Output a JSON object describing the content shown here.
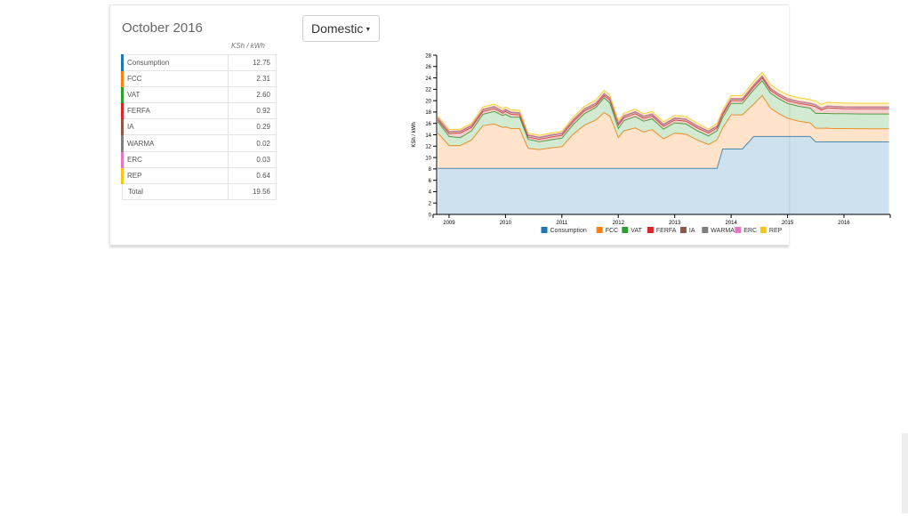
{
  "period_title": "October 2016",
  "unit_label": "KSh / kWh",
  "tariff_dropdown": {
    "selected": "Domestic"
  },
  "breakdown": {
    "rows": [
      {
        "name": "Consumption",
        "value": "12.75",
        "color": "#1f77b4"
      },
      {
        "name": "FCC",
        "value": "2.31",
        "color": "#ff7f0e"
      },
      {
        "name": "VAT",
        "value": "2.60",
        "color": "#2ca02c"
      },
      {
        "name": "FERFA",
        "value": "0.92",
        "color": "#d62728"
      },
      {
        "name": "IA",
        "value": "0.29",
        "color": "#8c564b"
      },
      {
        "name": "WARMA",
        "value": "0.02",
        "color": "#7f7f7f"
      },
      {
        "name": "ERC",
        "value": "0.03",
        "color": "#e377c2"
      },
      {
        "name": "REP",
        "value": "0.64",
        "color": "#f5c518"
      }
    ],
    "total_label": "Total",
    "total_value": "19.56"
  },
  "chart_data": {
    "type": "area",
    "stacked": true,
    "ylabel": "KSh / kWh",
    "ylim": [
      0,
      28
    ],
    "yticks": [
      0,
      2,
      4,
      6,
      8,
      10,
      12,
      14,
      16,
      18,
      20,
      22,
      24,
      26,
      28
    ],
    "xlim": [
      2008.78,
      2016.82
    ],
    "xticks": [
      2009,
      2010,
      2011,
      2012,
      2013,
      2014,
      2015,
      2016
    ],
    "legend_position": "bottom",
    "x": [
      2008.8,
      2009.0,
      2009.2,
      2009.4,
      2009.6,
      2009.8,
      2009.95,
      2010.0,
      2010.1,
      2010.25,
      2010.4,
      2010.6,
      2010.8,
      2011.0,
      2011.2,
      2011.4,
      2011.6,
      2011.75,
      2011.85,
      2012.0,
      2012.1,
      2012.3,
      2012.45,
      2012.6,
      2012.8,
      2013.0,
      2013.2,
      2013.4,
      2013.6,
      2013.75,
      2013.85,
      2014.0,
      2014.2,
      2014.4,
      2014.55,
      2014.7,
      2014.85,
      2015.0,
      2015.2,
      2015.4,
      2015.5,
      2015.6,
      2015.7,
      2015.8,
      2016.0,
      2016.2,
      2016.4,
      2016.6,
      2016.8
    ],
    "series": [
      {
        "name": "Consumption",
        "color": "#1f77b4",
        "values": [
          8.1,
          8.1,
          8.1,
          8.1,
          8.1,
          8.1,
          8.1,
          8.1,
          8.1,
          8.1,
          8.1,
          8.1,
          8.1,
          8.1,
          8.1,
          8.1,
          8.1,
          8.1,
          8.1,
          8.1,
          8.1,
          8.1,
          8.1,
          8.1,
          8.1,
          8.1,
          8.1,
          8.1,
          8.1,
          8.1,
          11.5,
          11.5,
          11.5,
          13.7,
          13.7,
          13.7,
          13.7,
          13.7,
          13.7,
          13.7,
          12.75,
          12.75,
          12.75,
          12.75,
          12.75,
          12.75,
          12.75,
          12.75,
          12.75
        ]
      },
      {
        "name": "FCC",
        "color": "#ff7f0e",
        "values": [
          6.2,
          4.0,
          4.0,
          5.0,
          7.5,
          7.8,
          7.2,
          7.3,
          7.0,
          7.0,
          3.5,
          3.3,
          3.6,
          3.8,
          6.0,
          7.6,
          8.5,
          9.8,
          9.2,
          5.4,
          6.6,
          7.1,
          6.4,
          6.8,
          5.2,
          6.2,
          6.0,
          5.0,
          4.2,
          5.0,
          3.7,
          6.0,
          6.0,
          5.7,
          7.2,
          5.0,
          4.0,
          3.2,
          2.7,
          2.4,
          2.4,
          2.4,
          2.4,
          2.35,
          2.35,
          2.33,
          2.31,
          2.31,
          2.31
        ]
      },
      {
        "name": "VAT",
        "color": "#2ca02c",
        "values": [
          2.0,
          1.6,
          1.4,
          1.6,
          2.0,
          2.2,
          2.1,
          2.2,
          2.0,
          2.0,
          1.6,
          1.4,
          1.4,
          1.5,
          1.7,
          2.0,
          2.2,
          2.6,
          2.3,
          1.6,
          1.8,
          2.0,
          1.9,
          1.9,
          1.7,
          1.8,
          1.8,
          1.6,
          1.5,
          1.6,
          1.8,
          2.0,
          2.0,
          2.5,
          2.6,
          2.6,
          2.6,
          2.6,
          2.6,
          2.6,
          2.6,
          2.6,
          2.6,
          2.6,
          2.6,
          2.6,
          2.6,
          2.6,
          2.6
        ]
      },
      {
        "name": "FERFA",
        "color": "#d62728",
        "values": [
          0.3,
          0.5,
          0.8,
          0.6,
          0.5,
          0.5,
          0.4,
          0.5,
          0.5,
          0.4,
          0.4,
          0.4,
          0.5,
          0.5,
          0.5,
          0.5,
          0.4,
          0.4,
          0.5,
          0.6,
          0.5,
          0.5,
          0.5,
          0.5,
          0.5,
          0.5,
          0.5,
          0.5,
          0.5,
          0.5,
          0.5,
          0.5,
          0.5,
          0.5,
          0.5,
          0.5,
          0.5,
          0.5,
          0.5,
          0.5,
          1.2,
          0.6,
          1.0,
          1.0,
          0.9,
          0.9,
          0.92,
          0.92,
          0.92
        ]
      },
      {
        "name": "IA",
        "color": "#8c564b",
        "values": [
          0.3,
          0.3,
          0.3,
          0.3,
          0.3,
          0.3,
          0.3,
          0.3,
          0.3,
          0.3,
          0.3,
          0.3,
          0.3,
          0.3,
          0.3,
          0.3,
          0.3,
          0.3,
          0.3,
          0.3,
          0.3,
          0.3,
          0.3,
          0.3,
          0.3,
          0.3,
          0.3,
          0.3,
          0.3,
          0.3,
          0.3,
          0.3,
          0.3,
          0.3,
          0.3,
          0.3,
          0.3,
          0.3,
          0.3,
          0.3,
          0.29,
          0.29,
          0.29,
          0.29,
          0.29,
          0.29,
          0.29,
          0.29,
          0.29
        ]
      },
      {
        "name": "WARMA",
        "color": "#7f7f7f",
        "values": [
          0.05,
          0.05,
          0.05,
          0.05,
          0.05,
          0.05,
          0.05,
          0.05,
          0.05,
          0.05,
          0.05,
          0.05,
          0.05,
          0.05,
          0.05,
          0.05,
          0.05,
          0.05,
          0.05,
          0.05,
          0.05,
          0.05,
          0.05,
          0.05,
          0.05,
          0.05,
          0.05,
          0.05,
          0.05,
          0.05,
          0.05,
          0.05,
          0.05,
          0.05,
          0.05,
          0.05,
          0.05,
          0.05,
          0.05,
          0.05,
          0.02,
          0.02,
          0.02,
          0.02,
          0.02,
          0.02,
          0.02,
          0.02,
          0.02
        ]
      },
      {
        "name": "ERC",
        "color": "#e377c2",
        "values": [
          0.05,
          0.05,
          0.05,
          0.05,
          0.05,
          0.05,
          0.05,
          0.05,
          0.05,
          0.05,
          0.05,
          0.05,
          0.05,
          0.05,
          0.05,
          0.05,
          0.05,
          0.05,
          0.05,
          0.05,
          0.05,
          0.05,
          0.05,
          0.05,
          0.05,
          0.05,
          0.05,
          0.05,
          0.05,
          0.05,
          0.05,
          0.05,
          0.05,
          0.05,
          0.05,
          0.05,
          0.05,
          0.05,
          0.05,
          0.05,
          0.03,
          0.03,
          0.03,
          0.03,
          0.03,
          0.03,
          0.03,
          0.03,
          0.03
        ]
      },
      {
        "name": "REP",
        "color": "#f5c518",
        "values": [
          0.3,
          0.3,
          0.3,
          0.3,
          0.4,
          0.4,
          0.4,
          0.4,
          0.4,
          0.4,
          0.3,
          0.3,
          0.3,
          0.3,
          0.4,
          0.4,
          0.5,
          0.5,
          0.5,
          0.4,
          0.4,
          0.4,
          0.4,
          0.4,
          0.4,
          0.4,
          0.4,
          0.4,
          0.3,
          0.4,
          0.4,
          0.5,
          0.5,
          0.6,
          0.6,
          0.6,
          0.6,
          0.6,
          0.6,
          0.6,
          0.64,
          0.64,
          0.64,
          0.64,
          0.64,
          0.64,
          0.64,
          0.64,
          0.64
        ]
      }
    ]
  }
}
